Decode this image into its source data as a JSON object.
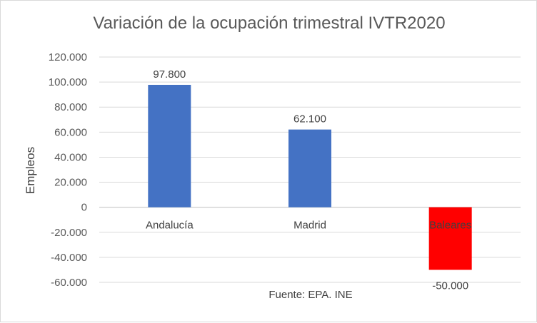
{
  "chart_data": {
    "type": "bar",
    "title": "Variación de la ocupación trimestral IVTR2020",
    "ylabel": "Empleos",
    "xlabel": "",
    "annotation": "Fuente: EPA. INE",
    "categories": [
      "Andalucía",
      "Madrid",
      "Baleares"
    ],
    "values": [
      97800,
      62100,
      -50000
    ],
    "value_labels": [
      "97.800",
      "62.100",
      "-50.000"
    ],
    "colors": [
      "#4472C4",
      "#4472C4",
      "#FF0000"
    ],
    "ylim": [
      -60000,
      120000
    ],
    "y_ticks": [
      120000,
      100000,
      80000,
      60000,
      40000,
      20000,
      0,
      -20000,
      -40000,
      -60000
    ],
    "y_tick_labels": [
      "120.000",
      "100.000",
      "80.000",
      "60.000",
      "40.000",
      "20.000",
      "0",
      "-20.000",
      "-40.000",
      "-60.000"
    ],
    "grid": true,
    "legend": "none"
  }
}
